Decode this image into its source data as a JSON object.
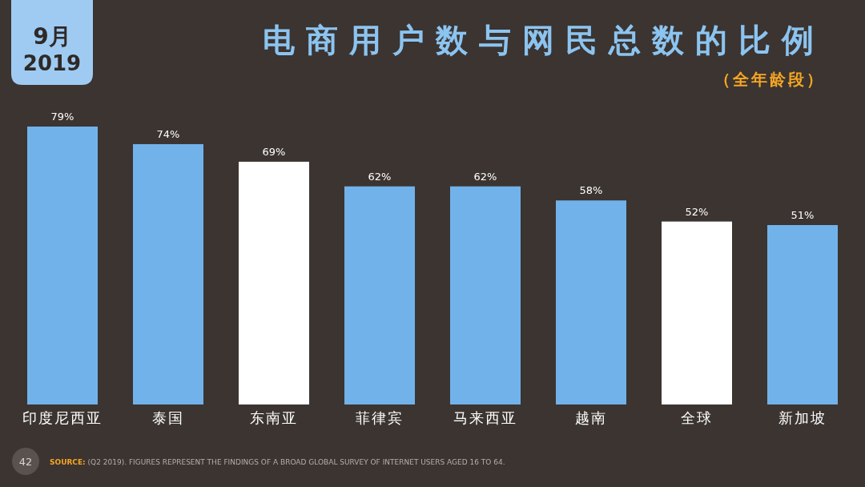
{
  "chart_data": {
    "type": "bar",
    "title": "电商用户数与网民总数的比例",
    "subtitle": "（全年龄段）",
    "categories": [
      "印度尼西亚",
      "泰国",
      "东南亚",
      "菲律宾",
      "马来西亚",
      "越南",
      "全球",
      "新加坡"
    ],
    "values": [
      79,
      74,
      69,
      62,
      62,
      58,
      52,
      51
    ],
    "value_labels": [
      "79%",
      "74%",
      "69%",
      "62%",
      "62%",
      "58%",
      "52%",
      "51%"
    ],
    "colors": [
      "#72b2ea",
      "#72b2ea",
      "#ffffff",
      "#72b2ea",
      "#72b2ea",
      "#72b2ea",
      "#ffffff",
      "#72b2ea"
    ],
    "annotations": [
      "9月",
      "2019",
      "42",
      "SOURCE: (Q2 2019). FIGURES REPRESENT THE FINDINGS OF A BROAD GLOBAL SURVEY OF INTERNET USERS AGED 16 TO 64."
    ]
  }
}
